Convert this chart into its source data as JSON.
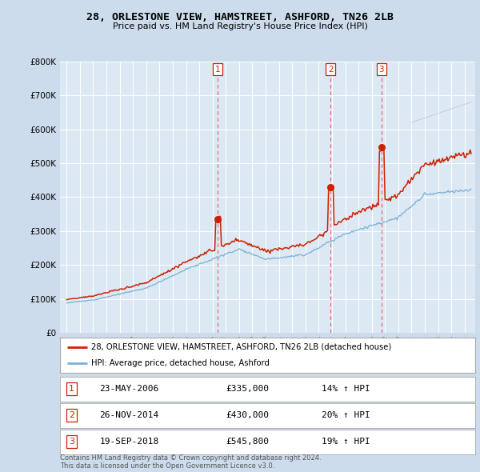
{
  "title": "28, ORLESTONE VIEW, HAMSTREET, ASHFORD, TN26 2LB",
  "subtitle": "Price paid vs. HM Land Registry's House Price Index (HPI)",
  "bg_color": "#ccdcec",
  "plot_bg_color": "#dce8f4",
  "red_line_label": "28, ORLESTONE VIEW, HAMSTREET, ASHFORD, TN26 2LB (detached house)",
  "blue_line_label": "HPI: Average price, detached house, Ashford",
  "sales": [
    {
      "num": 1,
      "date": "23-MAY-2006",
      "price": 335000,
      "hpi_pct": "14% ↑ HPI",
      "x_year": 2006.38
    },
    {
      "num": 2,
      "date": "26-NOV-2014",
      "price": 430000,
      "hpi_pct": "20% ↑ HPI",
      "x_year": 2014.9
    },
    {
      "num": 3,
      "date": "19-SEP-2018",
      "price": 545800,
      "hpi_pct": "19% ↑ HPI",
      "x_year": 2018.72
    }
  ],
  "footer": "Contains HM Land Registry data © Crown copyright and database right 2024.\nThis data is licensed under the Open Government Licence v3.0.",
  "ylim": [
    0,
    800000
  ],
  "yticks": [
    0,
    100000,
    200000,
    300000,
    400000,
    500000,
    600000,
    700000,
    800000
  ],
  "xmin": 1994.5,
  "xmax": 2025.8
}
